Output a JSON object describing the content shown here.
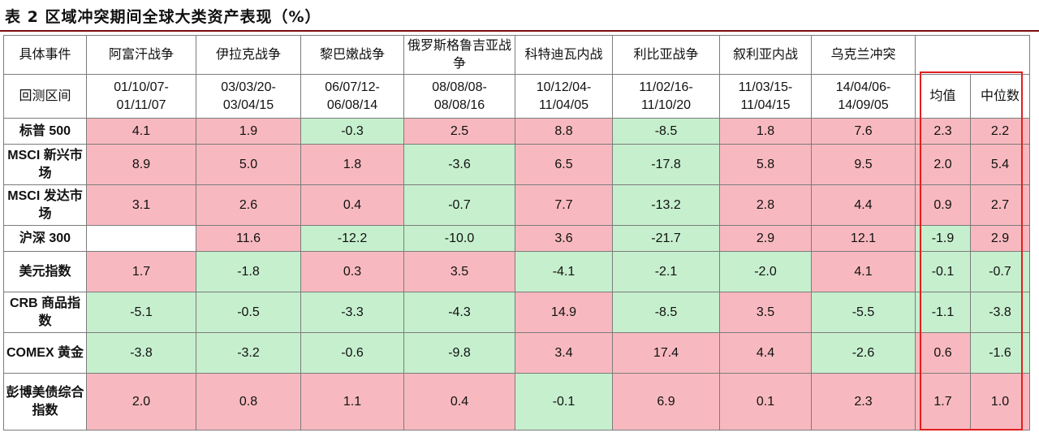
{
  "title": "表 2  区域冲突期间全球大类资产表现（%）",
  "colors": {
    "positive_fill": "#f7b9bf",
    "positive_text": "#b11a1a",
    "negative_fill": "#c6efce",
    "negative_text": "#1f5323",
    "highlight_border": "#e21f1f"
  },
  "header": {
    "event_label": "具体事件",
    "period_label": "回测区间",
    "mean_label": "均值",
    "median_label": "中位数"
  },
  "events": [
    {
      "name": "阿富汗战争",
      "start": "01/10/07-",
      "end": "01/11/07"
    },
    {
      "name": "伊拉克战争",
      "start": "03/03/20-",
      "end": "03/04/15"
    },
    {
      "name": "黎巴嫩战争",
      "start": "06/07/12-",
      "end": "06/08/14"
    },
    {
      "name": "俄罗斯格鲁吉亚战争",
      "start": "08/08/08-",
      "end": "08/08/16"
    },
    {
      "name": "科特迪瓦内战",
      "start": "10/12/04-",
      "end": "11/04/05"
    },
    {
      "name": "利比亚战争",
      "start": "11/02/16-",
      "end": "11/10/20"
    },
    {
      "name": "叙利亚内战",
      "start": "11/03/15-",
      "end": "11/04/15"
    },
    {
      "name": "乌克兰冲突",
      "start": "14/04/06-",
      "end": "14/09/05"
    }
  ],
  "rows": [
    {
      "asset": "标普 500",
      "values": [
        "4.1",
        "1.9",
        "-0.3",
        "2.5",
        "8.8",
        "-8.5",
        "1.8",
        "7.6"
      ],
      "mean": "2.3",
      "median": "2.2"
    },
    {
      "asset": "MSCI 新兴市场",
      "values": [
        "8.9",
        "5.0",
        "1.8",
        "-3.6",
        "6.5",
        "-17.8",
        "5.8",
        "9.5"
      ],
      "mean": "2.0",
      "median": "5.4"
    },
    {
      "asset": "MSCI 发达市场",
      "values": [
        "3.1",
        "2.6",
        "0.4",
        "-0.7",
        "7.7",
        "-13.2",
        "2.8",
        "4.4"
      ],
      "mean": "0.9",
      "median": "2.7"
    },
    {
      "asset": "沪深 300",
      "values": [
        "",
        "11.6",
        "-12.2",
        "-10.0",
        "3.6",
        "-21.7",
        "2.9",
        "12.1"
      ],
      "mean": "-1.9",
      "median": "2.9"
    },
    {
      "asset": "美元指数",
      "values": [
        "1.7",
        "-1.8",
        "0.3",
        "3.5",
        "-4.1",
        "-2.1",
        "-2.0",
        "4.1"
      ],
      "mean": "-0.1",
      "median": "-0.7"
    },
    {
      "asset": "CRB 商品指数",
      "values": [
        "-5.1",
        "-0.5",
        "-3.3",
        "-4.3",
        "14.9",
        "-8.5",
        "3.5",
        "-5.5"
      ],
      "mean": "-1.1",
      "median": "-3.8"
    },
    {
      "asset": "COMEX 黄金",
      "values": [
        "-3.8",
        "-3.2",
        "-0.6",
        "-9.8",
        "3.4",
        "17.4",
        "4.4",
        "-2.6"
      ],
      "mean": "0.6",
      "median": "-1.6"
    },
    {
      "asset": "彭博美债综合指数",
      "values": [
        "2.0",
        "0.8",
        "1.1",
        "0.4",
        "-0.1",
        "6.9",
        "0.1",
        "2.3"
      ],
      "mean": "1.7",
      "median": "1.0"
    }
  ]
}
